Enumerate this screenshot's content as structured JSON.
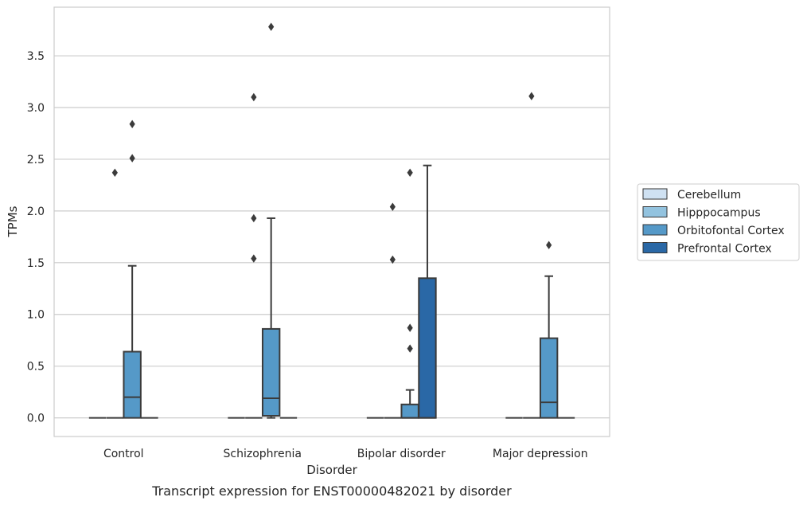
{
  "chart_data": {
    "type": "box",
    "caption": "Transcript expression for ENST00000482021 by disorder",
    "xlabel": "Disorder",
    "ylabel": "TPMs",
    "ylim": [
      -0.18,
      3.97
    ],
    "yticks": [
      0.0,
      0.5,
      1.0,
      1.5,
      2.0,
      2.5,
      3.0,
      3.5
    ],
    "ytick_labels": [
      "0.0",
      "0.5",
      "1.0",
      "1.5",
      "2.0",
      "2.5",
      "3.0",
      "3.5"
    ],
    "grid": "horizontal",
    "legend_position": "right",
    "categories": [
      "Control",
      "Schizophrenia",
      "Bipolar disorder",
      "Major depression"
    ],
    "series": [
      {
        "name": "Cerebellum",
        "color": "#cfe1f2",
        "boxes": [
          {
            "category": "Control",
            "whisker_low": 0,
            "q1": 0,
            "median": 0,
            "q3": 0,
            "whisker_high": 0,
            "outliers": []
          },
          {
            "category": "Schizophrenia",
            "whisker_low": 0,
            "q1": 0,
            "median": 0,
            "q3": 0,
            "whisker_high": 0,
            "outliers": []
          },
          {
            "category": "Bipolar disorder",
            "whisker_low": 0,
            "q1": 0,
            "median": 0,
            "q3": 0,
            "whisker_high": 0,
            "outliers": []
          },
          {
            "category": "Major depression",
            "whisker_low": 0,
            "q1": 0,
            "median": 0,
            "q3": 0,
            "whisker_high": 0,
            "outliers": []
          }
        ]
      },
      {
        "name": "Hipppocampus",
        "color": "#93c3df",
        "boxes": [
          {
            "category": "Control",
            "whisker_low": 0,
            "q1": 0,
            "median": 0,
            "q3": 0,
            "whisker_high": 0,
            "outliers": [
              2.37
            ]
          },
          {
            "category": "Schizophrenia",
            "whisker_low": 0,
            "q1": 0,
            "median": 0,
            "q3": 0,
            "whisker_high": 0,
            "outliers": [
              1.54,
              1.93,
              3.1
            ]
          },
          {
            "category": "Bipolar disorder",
            "whisker_low": 0,
            "q1": 0,
            "median": 0,
            "q3": 0,
            "whisker_high": 0,
            "outliers": [
              1.53,
              2.04
            ]
          },
          {
            "category": "Major depression",
            "whisker_low": 0,
            "q1": 0,
            "median": 0,
            "q3": 0,
            "whisker_high": 0,
            "outliers": [
              3.11
            ]
          }
        ]
      },
      {
        "name": "Orbitofontal Cortex",
        "color": "#5599c8",
        "boxes": [
          {
            "category": "Control",
            "whisker_low": 0,
            "q1": 0,
            "median": 0.2,
            "q3": 0.64,
            "whisker_high": 1.47,
            "outliers": [
              2.51,
              2.84
            ]
          },
          {
            "category": "Schizophrenia",
            "whisker_low": 0,
            "q1": 0.02,
            "median": 0.19,
            "q3": 0.86,
            "whisker_high": 1.93,
            "outliers": [
              3.78
            ]
          },
          {
            "category": "Bipolar disorder",
            "whisker_low": 0,
            "q1": 0,
            "median": 0,
            "q3": 0.13,
            "whisker_high": 0.27,
            "outliers": [
              0.67,
              0.87,
              2.37
            ]
          },
          {
            "category": "Major depression",
            "whisker_low": 0,
            "q1": 0,
            "median": 0.15,
            "q3": 0.77,
            "whisker_high": 1.37,
            "outliers": [
              1.67
            ]
          }
        ]
      },
      {
        "name": "Prefrontal Cortex",
        "color": "#2a68a6",
        "boxes": [
          {
            "category": "Control",
            "whisker_low": 0,
            "q1": 0,
            "median": 0,
            "q3": 0,
            "whisker_high": 0,
            "outliers": []
          },
          {
            "category": "Schizophrenia",
            "whisker_low": 0,
            "q1": 0,
            "median": 0,
            "q3": 0,
            "whisker_high": 0,
            "outliers": []
          },
          {
            "category": "Bipolar disorder",
            "whisker_low": 0,
            "q1": 0,
            "median": 0,
            "q3": 1.35,
            "whisker_high": 2.44,
            "outliers": []
          },
          {
            "category": "Major depression",
            "whisker_low": 0,
            "q1": 0,
            "median": 0,
            "q3": 0,
            "whisker_high": 0,
            "outliers": []
          }
        ]
      }
    ]
  }
}
